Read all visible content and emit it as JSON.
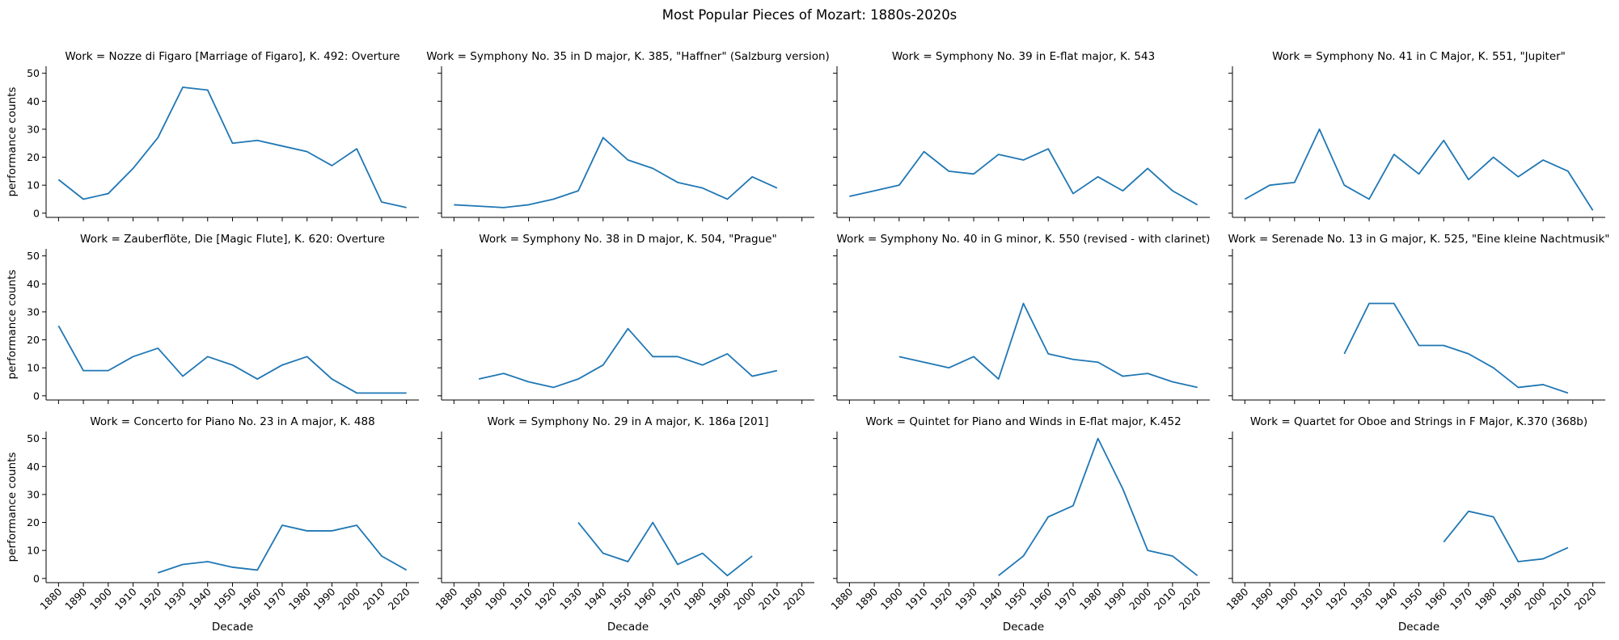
{
  "chart_data": {
    "type": "line",
    "title": "Most Popular Pieces of Mozart: 1880s-2020s",
    "xlabel": "Decade",
    "ylabel": "performance counts",
    "x_ticks": [
      "1880",
      "1890",
      "1900",
      "1910",
      "1920",
      "1930",
      "1940",
      "1950",
      "1960",
      "1970",
      "1980",
      "1990",
      "2000",
      "2010",
      "2020"
    ],
    "y_ticks": [
      0,
      10,
      20,
      30,
      40,
      50
    ],
    "ylim": [
      -1.5,
      52.5
    ],
    "xlim": [
      1875,
      2025
    ],
    "line_color": "#1f77b4",
    "panels": [
      {
        "title": "Work = Nozze di Figaro [Marriage of Figaro], K. 492: Overture",
        "x": [
          1880,
          1890,
          1900,
          1910,
          1920,
          1930,
          1940,
          1950,
          1960,
          1970,
          1980,
          1990,
          2000,
          2010,
          2020
        ],
        "y": [
          12,
          5,
          7,
          16,
          27,
          45,
          44,
          25,
          26,
          24,
          22,
          17,
          23,
          4,
          2
        ]
      },
      {
        "title": "Work = Symphony No. 35 in D major, K. 385, \"Haffner\" (Salzburg version)",
        "x": [
          1880,
          1890,
          1900,
          1910,
          1920,
          1930,
          1940,
          1950,
          1960,
          1970,
          1980,
          1990,
          2000,
          2010
        ],
        "y": [
          3,
          2.5,
          2,
          3,
          5,
          8,
          27,
          19,
          16,
          11,
          9,
          5,
          13,
          9
        ]
      },
      {
        "title": "Work = Symphony No. 39 in E-flat major, K. 543",
        "x": [
          1880,
          1890,
          1900,
          1910,
          1920,
          1930,
          1940,
          1950,
          1960,
          1970,
          1980,
          1990,
          2000,
          2010,
          2020
        ],
        "y": [
          6,
          8,
          10,
          22,
          15,
          14,
          21,
          19,
          23,
          7,
          13,
          8,
          16,
          8,
          3
        ]
      },
      {
        "title": "Work = Symphony No. 41 in C Major, K. 551, \"Jupiter\"",
        "x": [
          1880,
          1890,
          1900,
          1910,
          1920,
          1930,
          1940,
          1950,
          1960,
          1970,
          1980,
          1990,
          2000,
          2010,
          2020
        ],
        "y": [
          5,
          10,
          11,
          30,
          10,
          5,
          21,
          14,
          26,
          12,
          20,
          13,
          19,
          15,
          1
        ]
      },
      {
        "title": "Work = Zauberflöte, Die [Magic Flute], K. 620: Overture",
        "x": [
          1880,
          1890,
          1900,
          1910,
          1920,
          1930,
          1940,
          1950,
          1960,
          1970,
          1980,
          1990,
          2000,
          2010,
          2020
        ],
        "y": [
          25,
          9,
          9,
          14,
          17,
          7,
          14,
          11,
          6,
          11,
          14,
          6,
          1,
          1,
          1
        ]
      },
      {
        "title": "Work = Symphony No. 38 in D major, K. 504, \"Prague\"",
        "x": [
          1890,
          1900,
          1910,
          1920,
          1930,
          1940,
          1950,
          1960,
          1970,
          1980,
          1990,
          2000,
          2010
        ],
        "y": [
          6,
          8,
          5,
          3,
          6,
          11,
          24,
          14,
          14,
          11,
          15,
          7,
          9
        ]
      },
      {
        "title": "Work = Symphony No. 40 in G minor, K. 550 (revised - with clarinet)",
        "x": [
          1900,
          1910,
          1920,
          1930,
          1940,
          1950,
          1960,
          1970,
          1980,
          1990,
          2000,
          2010,
          2020
        ],
        "y": [
          14,
          12,
          10,
          14,
          6,
          33,
          15,
          13,
          12,
          7,
          8,
          5,
          3
        ]
      },
      {
        "title": "Work = Serenade No. 13 in G major, K. 525, \"Eine kleine Nachtmusik\"",
        "x": [
          1920,
          1930,
          1940,
          1950,
          1960,
          1970,
          1980,
          1990,
          2000,
          2010
        ],
        "y": [
          15,
          33,
          33,
          18,
          18,
          15,
          10,
          3,
          4,
          1
        ]
      },
      {
        "title": "Work = Concerto for Piano No. 23 in A major, K. 488",
        "x": [
          1920,
          1930,
          1940,
          1950,
          1960,
          1970,
          1980,
          1990,
          2000,
          2010,
          2020
        ],
        "y": [
          2,
          5,
          6,
          4,
          3,
          19,
          17,
          17,
          19,
          8,
          3
        ]
      },
      {
        "title": "Work = Symphony No. 29 in A major, K. 186a [201]",
        "x": [
          1930,
          1940,
          1950,
          1960,
          1970,
          1980,
          1990,
          2000
        ],
        "y": [
          20,
          9,
          6,
          20,
          5,
          9,
          1,
          8
        ]
      },
      {
        "title": "Work = Quintet for Piano and Winds in E-flat major, K.452",
        "x": [
          1940,
          1950,
          1960,
          1970,
          1980,
          1990,
          2000,
          2010,
          2020
        ],
        "y": [
          1,
          8,
          22,
          26,
          50,
          32,
          10,
          8,
          1
        ]
      },
      {
        "title": "Work = Quartet for Oboe and Strings in F Major, K.370 (368b)",
        "x": [
          1960,
          1970,
          1980,
          1990,
          2000,
          2010
        ],
        "y": [
          13,
          24,
          22,
          6,
          7,
          11
        ]
      }
    ]
  }
}
